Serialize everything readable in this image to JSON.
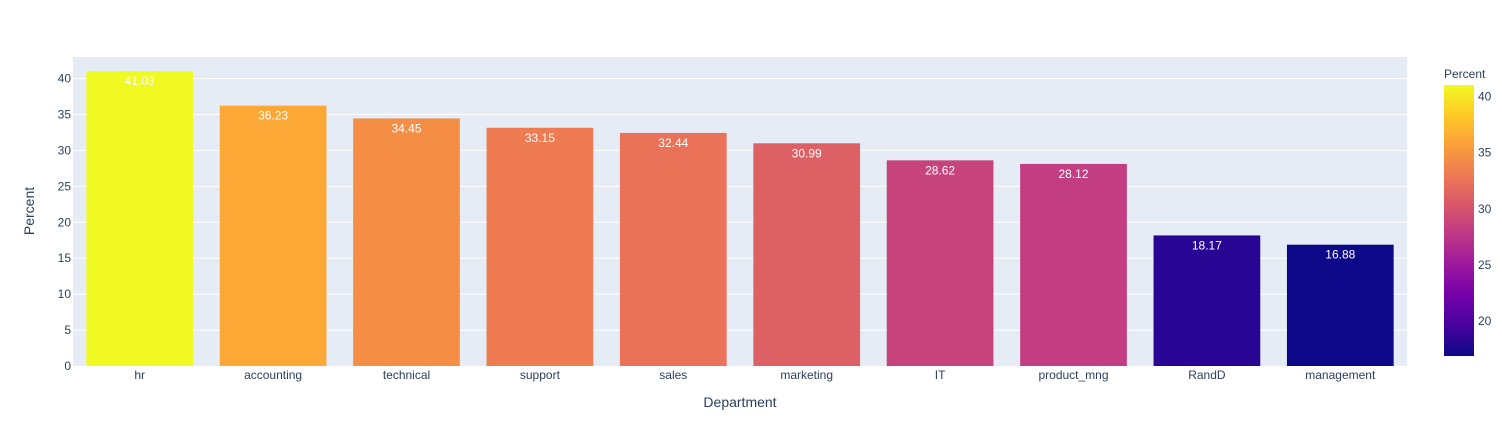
{
  "chart_data": {
    "type": "bar",
    "categories": [
      "hr",
      "accounting",
      "technical",
      "support",
      "sales",
      "marketing",
      "IT",
      "product_mng",
      "RandD",
      "management"
    ],
    "values": [
      41.03,
      36.23,
      34.45,
      33.15,
      32.44,
      30.99,
      28.62,
      28.12,
      18.17,
      16.88
    ],
    "value_labels": [
      "41.03",
      "36.23",
      "34.45",
      "33.15",
      "32.44",
      "30.99",
      "28.62",
      "28.12",
      "18.17",
      "16.88"
    ],
    "title": "",
    "xlabel": "Department",
    "ylabel": "Percent",
    "ylim": [
      0,
      43
    ],
    "yticks": [
      0,
      5,
      10,
      15,
      20,
      25,
      30,
      35,
      40
    ],
    "grid": true,
    "colorscale": {
      "name": "Plasma",
      "title": "Percent",
      "cmin": 16.88,
      "cmax": 41.03,
      "ticks": [
        20,
        25,
        30,
        35,
        40
      ],
      "stops": [
        "#0d0887",
        "#46039f",
        "#7201a8",
        "#9c179e",
        "#bd3786",
        "#d8576b",
        "#ed7953",
        "#fb9f3a",
        "#fdca26",
        "#f0f921"
      ]
    },
    "plot_background": "#e5ecf6",
    "text_color": "#2a3f5f",
    "bar_label_color": "#ffffff"
  }
}
